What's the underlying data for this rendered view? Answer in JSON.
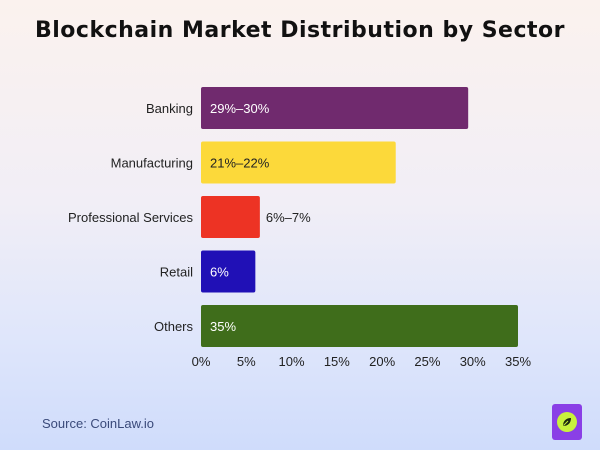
{
  "chart_data": {
    "type": "bar",
    "orientation": "horizontal",
    "title": "Blockchain Market Distribution by Sector",
    "categories": [
      "Banking",
      "Manufacturing",
      "Professional Services",
      "Retail",
      "Others"
    ],
    "values": [
      29.5,
      21.5,
      6.5,
      6,
      35
    ],
    "data_labels": [
      "29%–30%",
      "21%–22%",
      "6%–7%",
      "6%",
      "35%"
    ],
    "colors": [
      "#702a6e",
      "#fcd93a",
      "#ed3324",
      "#2010b6",
      "#3f6d1b"
    ],
    "label_colors": [
      "#ffffff",
      "#222222",
      "#222222",
      "#ffffff",
      "#ffffff"
    ],
    "label_inside": [
      true,
      true,
      false,
      true,
      true
    ],
    "xlim": [
      0,
      35
    ],
    "xticks": [
      0,
      5,
      10,
      15,
      20,
      25,
      30,
      35
    ],
    "xtick_labels": [
      "0%",
      "5%",
      "10%",
      "15%",
      "20%",
      "25%",
      "30%",
      "35%"
    ],
    "xlabel": "",
    "ylabel": "",
    "grid": false,
    "legend": "none"
  },
  "source": "Source: CoinLaw.io",
  "logo_icon": "leaf-icon"
}
